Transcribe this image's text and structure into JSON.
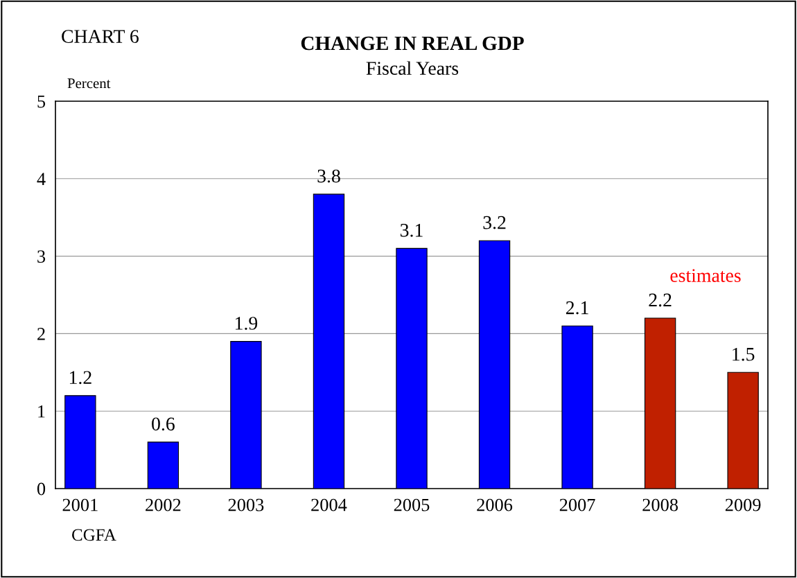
{
  "chart_data": {
    "type": "bar",
    "title": "CHANGE IN REAL GDP",
    "subtitle": "Fiscal Years",
    "ylabel": "Percent",
    "categories": [
      "2001",
      "2002",
      "2003",
      "2004",
      "2005",
      "2006",
      "2007",
      "2008",
      "2009"
    ],
    "values": [
      1.2,
      0.6,
      1.9,
      3.8,
      3.1,
      3.2,
      2.1,
      2.2,
      1.5
    ],
    "colors": [
      "#0000ff",
      "#0000ff",
      "#0000ff",
      "#0000ff",
      "#0000ff",
      "#0000ff",
      "#0000ff",
      "#c02000",
      "#c02000"
    ],
    "ylim": [
      0,
      5
    ],
    "yticks": [
      0,
      1,
      2,
      3,
      4,
      5
    ],
    "grid": "y",
    "data_labels": true,
    "annotations": [
      "CHART 6",
      "estimates",
      "CGFA"
    ]
  }
}
